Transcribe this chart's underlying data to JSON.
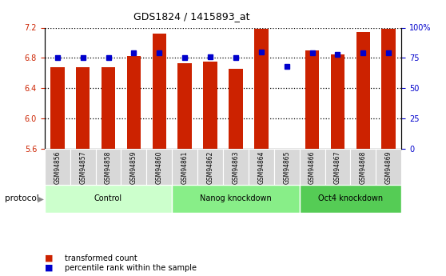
{
  "title": "GDS1824 / 1415893_at",
  "samples": [
    "GSM94856",
    "GSM94857",
    "GSM94858",
    "GSM94859",
    "GSM94860",
    "GSM94861",
    "GSM94862",
    "GSM94863",
    "GSM94864",
    "GSM94865",
    "GSM94866",
    "GSM94867",
    "GSM94868",
    "GSM94869"
  ],
  "transformed_counts": [
    6.68,
    6.68,
    6.68,
    6.83,
    7.12,
    6.73,
    6.75,
    6.66,
    7.18,
    5.56,
    6.9,
    6.85,
    7.14,
    7.18
  ],
  "percentile_ranks": [
    75,
    75,
    75,
    79,
    79,
    75,
    76,
    75,
    80,
    68,
    79,
    78,
    79,
    79
  ],
  "groups": [
    {
      "label": "Control",
      "start": 0,
      "end": 5,
      "color": "#ccffcc"
    },
    {
      "label": "Nanog knockdown",
      "start": 5,
      "end": 10,
      "color": "#88ee88"
    },
    {
      "label": "Oct4 knockdown",
      "start": 10,
      "end": 14,
      "color": "#55cc55"
    }
  ],
  "bar_color": "#cc2200",
  "dot_color": "#0000cc",
  "ymin": 5.6,
  "ymax": 7.2,
  "y_ticks": [
    5.6,
    6.0,
    6.4,
    6.8,
    7.2
  ],
  "y_right_ticks": [
    0,
    25,
    50,
    75,
    100
  ],
  "y_right_labels": [
    "0",
    "25",
    "50",
    "75",
    "100%"
  ],
  "grid_values": [
    6.0,
    6.4,
    6.8
  ],
  "background_color": "#ffffff",
  "xtick_bg": "#d8d8d8"
}
